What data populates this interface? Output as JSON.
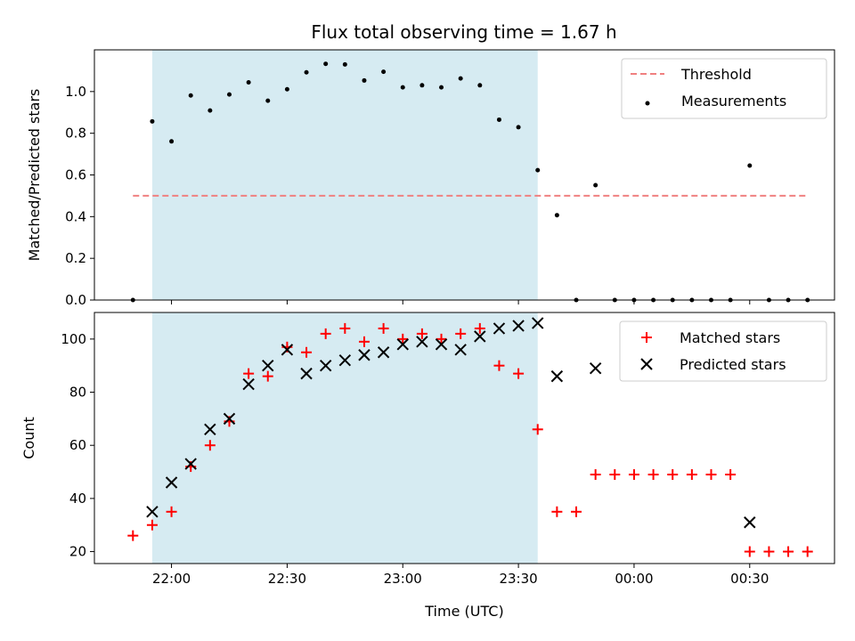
{
  "chart_data": {
    "title": "Flux total observing time = 1.67 h",
    "shared_x": {
      "label": "Time (UTC)",
      "ticks": [
        "22:00",
        "22:30",
        "23:00",
        "23:30",
        "00:00",
        "00:30"
      ],
      "tick_minutes": [
        1320,
        1350,
        1380,
        1410,
        1440,
        1470
      ],
      "range_minutes": [
        1300,
        1492
      ],
      "observing_window_minutes": [
        1315,
        1415
      ]
    },
    "x_minutes": [
      1310,
      1315,
      1320,
      1325,
      1330,
      1335,
      1340,
      1345,
      1350,
      1355,
      1360,
      1365,
      1370,
      1375,
      1380,
      1385,
      1390,
      1395,
      1400,
      1405,
      1410,
      1415,
      1420,
      1425,
      1430,
      1435,
      1440,
      1445,
      1450,
      1455,
      1460,
      1465,
      1470,
      1475,
      1480,
      1485
    ],
    "panels": [
      {
        "type": "scatter",
        "ylabel": "Matched/Predicted stars",
        "ylim": [
          0,
          1.2
        ],
        "yticks": [
          "0.0",
          "0.2",
          "0.4",
          "0.6",
          "0.8",
          "1.0"
        ],
        "ytick_values": [
          0,
          0.2,
          0.4,
          0.6,
          0.8,
          1.0
        ],
        "threshold": {
          "name": "Threshold",
          "value": 0.5,
          "x_range": [
            1310,
            1485
          ],
          "color": "#f08080"
        },
        "series": [
          {
            "name": "Measurements",
            "color": "#000000",
            "values": [
              0.0,
              0.857,
              0.761,
              0.981,
              0.909,
              0.986,
              1.044,
              0.956,
              1.011,
              1.092,
              1.133,
              1.13,
              1.053,
              1.095,
              1.02,
              1.03,
              1.02,
              1.063,
              1.03,
              0.865,
              0.829,
              0.623,
              0.407,
              0.0,
              0.551,
              0.0,
              0.0,
              0.0,
              0.0,
              0.0,
              0.0,
              0.0,
              0.645,
              0.0,
              0.0,
              0.0
            ]
          }
        ],
        "legend": "top-right"
      },
      {
        "type": "scatter",
        "ylabel": "Count",
        "ylim": [
          15.5,
          110
        ],
        "yticks": [
          "20",
          "40",
          "60",
          "80",
          "100"
        ],
        "ytick_values": [
          20,
          40,
          60,
          80,
          100
        ],
        "series": [
          {
            "name": "Matched stars",
            "marker": "plus",
            "color": "#ff0000",
            "values": [
              26,
              30,
              35,
              52,
              60,
              69,
              87,
              86,
              97,
              95,
              102,
              104,
              99,
              104,
              100,
              102,
              100,
              102,
              104,
              90,
              87,
              66,
              35,
              35,
              49,
              49,
              49,
              49,
              49,
              49,
              49,
              49,
              20,
              20,
              20,
              20
            ]
          },
          {
            "name": "Predicted stars",
            "marker": "x",
            "color": "#000000",
            "values": [
              null,
              35,
              46,
              53,
              66,
              70,
              83,
              90,
              96,
              87,
              90,
              92,
              94,
              95,
              98,
              99,
              98,
              96,
              101,
              104,
              105,
              106,
              86,
              null,
              89,
              null,
              null,
              null,
              null,
              null,
              null,
              null,
              31,
              null,
              null,
              null
            ]
          }
        ],
        "legend": "top-right"
      }
    ]
  }
}
